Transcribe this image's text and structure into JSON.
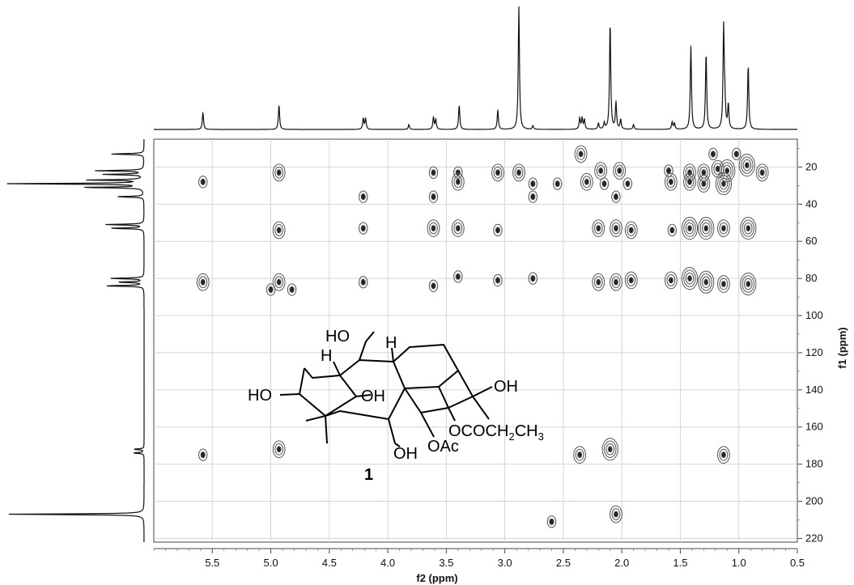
{
  "chart_data": {
    "type": "heatmap",
    "subtype": "2D HMBC NMR spectrum",
    "xlabel": "f2 (ppm)",
    "ylabel": "f1 (ppm)",
    "xlim": [
      6.0,
      0.5
    ],
    "ylim": [
      222,
      5
    ],
    "x_reversed": true,
    "y_reversed": true,
    "grid": true,
    "x_ticks": [
      5.5,
      5.0,
      4.5,
      4.0,
      3.5,
      3.0,
      2.5,
      2.0,
      1.5,
      1.0,
      0.5
    ],
    "x_tick_labels": [
      "5.5",
      "5.0",
      "4.5",
      "4.0",
      "3.5",
      "3.0",
      "2.5",
      "2.0",
      "1.5",
      "1.0",
      "0.5"
    ],
    "y_ticks": [
      20,
      40,
      60,
      80,
      100,
      120,
      140,
      160,
      180,
      200,
      220
    ],
    "y_tick_labels": [
      "20",
      "40",
      "60",
      "80",
      "100",
      "120",
      "140",
      "160",
      "180",
      "200",
      "220"
    ],
    "proton_spectrum_peaks": [
      {
        "ppm": 5.58,
        "h": 0.14
      },
      {
        "ppm": 4.93,
        "h": 0.2
      },
      {
        "ppm": 4.21,
        "h": 0.09
      },
      {
        "ppm": 4.19,
        "h": 0.09
      },
      {
        "ppm": 3.82,
        "h": 0.04
      },
      {
        "ppm": 3.61,
        "h": 0.1
      },
      {
        "ppm": 3.59,
        "h": 0.08
      },
      {
        "ppm": 3.39,
        "h": 0.2
      },
      {
        "ppm": 3.06,
        "h": 0.16
      },
      {
        "ppm": 2.88,
        "h": 1.0
      },
      {
        "ppm": 2.76,
        "h": 0.03
      },
      {
        "ppm": 2.36,
        "h": 0.09
      },
      {
        "ppm": 2.34,
        "h": 0.09
      },
      {
        "ppm": 2.32,
        "h": 0.08
      },
      {
        "ppm": 2.2,
        "h": 0.05
      },
      {
        "ppm": 2.15,
        "h": 0.05
      },
      {
        "ppm": 2.1,
        "h": 0.88
      },
      {
        "ppm": 2.05,
        "h": 0.22
      },
      {
        "ppm": 2.01,
        "h": 0.08
      },
      {
        "ppm": 1.9,
        "h": 0.04
      },
      {
        "ppm": 1.57,
        "h": 0.06
      },
      {
        "ppm": 1.55,
        "h": 0.05
      },
      {
        "ppm": 1.41,
        "h": 0.68
      },
      {
        "ppm": 1.28,
        "h": 0.63
      },
      {
        "ppm": 1.13,
        "h": 0.82
      },
      {
        "ppm": 1.12,
        "h": 0.2
      },
      {
        "ppm": 1.09,
        "h": 0.2
      },
      {
        "ppm": 0.92,
        "h": 0.53
      }
    ],
    "carbon_spectrum_peaks": [
      {
        "ppm": 13,
        "h": 0.25
      },
      {
        "ppm": 22,
        "h": 0.35
      },
      {
        "ppm": 24,
        "h": 0.3
      },
      {
        "ppm": 27,
        "h": 0.4
      },
      {
        "ppm": 29,
        "h": 1.0
      },
      {
        "ppm": 31,
        "h": 0.45
      },
      {
        "ppm": 36,
        "h": 0.2
      },
      {
        "ppm": 51,
        "h": 0.28
      },
      {
        "ppm": 53,
        "h": 0.25
      },
      {
        "ppm": 80,
        "h": 0.25
      },
      {
        "ppm": 82,
        "h": 0.2
      },
      {
        "ppm": 84,
        "h": 0.3
      },
      {
        "ppm": 172,
        "h": 0.08
      },
      {
        "ppm": 174,
        "h": 0.08
      },
      {
        "ppm": 207,
        "h": 1.0
      }
    ],
    "cross_peaks": [
      {
        "x": 2.35,
        "y": 13,
        "i": 2
      },
      {
        "x": 1.22,
        "y": 13,
        "i": 1
      },
      {
        "x": 1.02,
        "y": 13,
        "i": 1
      },
      {
        "x": 2.18,
        "y": 22,
        "i": 2
      },
      {
        "x": 2.02,
        "y": 22,
        "i": 2
      },
      {
        "x": 1.6,
        "y": 22,
        "i": 1
      },
      {
        "x": 1.42,
        "y": 23,
        "i": 2
      },
      {
        "x": 1.3,
        "y": 23,
        "i": 2
      },
      {
        "x": 1.18,
        "y": 21,
        "i": 2
      },
      {
        "x": 1.1,
        "y": 22,
        "i": 3
      },
      {
        "x": 0.93,
        "y": 19,
        "i": 3
      },
      {
        "x": 0.8,
        "y": 23,
        "i": 2
      },
      {
        "x": 4.93,
        "y": 23,
        "i": 2
      },
      {
        "x": 3.61,
        "y": 23,
        "i": 1
      },
      {
        "x": 3.4,
        "y": 23,
        "i": 1
      },
      {
        "x": 3.06,
        "y": 23,
        "i": 2
      },
      {
        "x": 2.88,
        "y": 23,
        "i": 2
      },
      {
        "x": 5.58,
        "y": 28,
        "i": 1
      },
      {
        "x": 3.4,
        "y": 28,
        "i": 2
      },
      {
        "x": 2.76,
        "y": 29,
        "i": 1
      },
      {
        "x": 2.55,
        "y": 29,
        "i": 1
      },
      {
        "x": 2.3,
        "y": 28,
        "i": 2
      },
      {
        "x": 2.15,
        "y": 29,
        "i": 1
      },
      {
        "x": 1.95,
        "y": 29,
        "i": 1
      },
      {
        "x": 1.58,
        "y": 28,
        "i": 2
      },
      {
        "x": 1.42,
        "y": 28,
        "i": 2
      },
      {
        "x": 1.3,
        "y": 29,
        "i": 2
      },
      {
        "x": 1.13,
        "y": 29,
        "i": 3
      },
      {
        "x": 4.21,
        "y": 36,
        "i": 1
      },
      {
        "x": 3.61,
        "y": 36,
        "i": 1
      },
      {
        "x": 2.76,
        "y": 36,
        "i": 1
      },
      {
        "x": 2.05,
        "y": 36,
        "i": 1
      },
      {
        "x": 4.93,
        "y": 54,
        "i": 2
      },
      {
        "x": 4.21,
        "y": 53,
        "i": 1
      },
      {
        "x": 3.61,
        "y": 53,
        "i": 2
      },
      {
        "x": 3.4,
        "y": 53,
        "i": 2
      },
      {
        "x": 3.06,
        "y": 54,
        "i": 1
      },
      {
        "x": 2.2,
        "y": 53,
        "i": 2
      },
      {
        "x": 2.05,
        "y": 53,
        "i": 2
      },
      {
        "x": 1.92,
        "y": 54,
        "i": 2
      },
      {
        "x": 1.57,
        "y": 54,
        "i": 1
      },
      {
        "x": 1.42,
        "y": 53,
        "i": 3
      },
      {
        "x": 1.28,
        "y": 53,
        "i": 3
      },
      {
        "x": 1.13,
        "y": 53,
        "i": 2
      },
      {
        "x": 0.92,
        "y": 53,
        "i": 3
      },
      {
        "x": 5.58,
        "y": 82,
        "i": 2
      },
      {
        "x": 4.93,
        "y": 82,
        "i": 2
      },
      {
        "x": 4.21,
        "y": 82,
        "i": 1
      },
      {
        "x": 3.61,
        "y": 84,
        "i": 1
      },
      {
        "x": 3.4,
        "y": 79,
        "i": 1
      },
      {
        "x": 3.06,
        "y": 81,
        "i": 1
      },
      {
        "x": 2.76,
        "y": 80,
        "i": 1
      },
      {
        "x": 2.2,
        "y": 82,
        "i": 2
      },
      {
        "x": 2.05,
        "y": 82,
        "i": 2
      },
      {
        "x": 1.92,
        "y": 81,
        "i": 2
      },
      {
        "x": 1.58,
        "y": 81,
        "i": 2
      },
      {
        "x": 1.42,
        "y": 80,
        "i": 3
      },
      {
        "x": 1.28,
        "y": 82,
        "i": 3
      },
      {
        "x": 1.13,
        "y": 83,
        "i": 2
      },
      {
        "x": 0.92,
        "y": 83,
        "i": 3
      },
      {
        "x": 5.0,
        "y": 86,
        "i": 1
      },
      {
        "x": 4.82,
        "y": 86,
        "i": 1
      },
      {
        "x": 5.58,
        "y": 175,
        "i": 1
      },
      {
        "x": 4.93,
        "y": 172,
        "i": 2
      },
      {
        "x": 2.36,
        "y": 175,
        "i": 2
      },
      {
        "x": 2.1,
        "y": 172,
        "i": 3
      },
      {
        "x": 1.13,
        "y": 175,
        "i": 2
      },
      {
        "x": 2.05,
        "y": 207,
        "i": 2
      },
      {
        "x": 2.6,
        "y": 211,
        "i": 1
      }
    ]
  },
  "structure": {
    "labels": {
      "oh_top": "HO",
      "h_left": "H",
      "h_right": "H",
      "oh_right": "OH",
      "ho_left": "HO",
      "oh_center": "OH",
      "ester_prefix": "OCOCH",
      "ester_sub": "2",
      "ester_ch": "CH",
      "ester_sub2": "3",
      "oh_bottom": "OH",
      "oac": "OAc"
    },
    "compound_number": "1"
  },
  "colors": {
    "contour": "#555555",
    "contour_core": "#222222",
    "grid": "#d4d4d4",
    "spectrum": "#111111"
  }
}
